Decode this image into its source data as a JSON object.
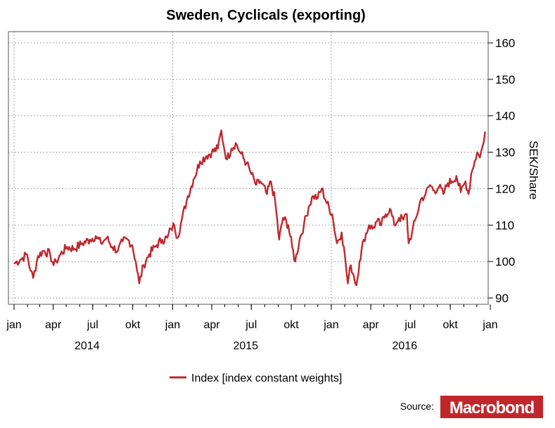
{
  "chart_data": {
    "type": "line",
    "title": "Sweden, Cyclicals (exporting)",
    "ylabel": "SEK/Share",
    "ylim": [
      88,
      163
    ],
    "y_ticks": [
      "160",
      "150",
      "140",
      "130",
      "120",
      "110",
      "100",
      "90"
    ],
    "y_tick_values": [
      160,
      150,
      140,
      130,
      120,
      110,
      100,
      90
    ],
    "x_range": [
      "2014-01-01",
      "2017-01-01"
    ],
    "x_month_ticks": [
      {
        "date": "2014-01-01",
        "label": "jan"
      },
      {
        "date": "2014-04-01",
        "label": "apr"
      },
      {
        "date": "2014-07-01",
        "label": "jul"
      },
      {
        "date": "2014-10-01",
        "label": "okt"
      },
      {
        "date": "2015-01-01",
        "label": "jan"
      },
      {
        "date": "2015-04-01",
        "label": "apr"
      },
      {
        "date": "2015-07-01",
        "label": "jul"
      },
      {
        "date": "2015-10-01",
        "label": "okt"
      },
      {
        "date": "2016-01-01",
        "label": "jan"
      },
      {
        "date": "2016-04-01",
        "label": "apr"
      },
      {
        "date": "2016-07-01",
        "label": "jul"
      },
      {
        "date": "2016-10-01",
        "label": "okt"
      },
      {
        "date": "2017-01-01",
        "label": "jan"
      }
    ],
    "x_year_labels": [
      {
        "date": "2014-07-01",
        "label": "2014"
      },
      {
        "date": "2015-07-01",
        "label": "2015"
      },
      {
        "date": "2016-07-01",
        "label": "2016"
      }
    ],
    "grid": true,
    "legend_position": "bottom",
    "series": [
      {
        "name": "Index [index constant weights]",
        "color": "#c0272d",
        "points": [
          [
            "2014-01-02",
            99.5
          ],
          [
            "2014-01-15",
            100.5
          ],
          [
            "2014-01-31",
            102
          ],
          [
            "2014-02-08",
            97.5
          ],
          [
            "2014-02-14",
            95.5
          ],
          [
            "2014-02-25",
            101.5
          ],
          [
            "2014-03-10",
            103
          ],
          [
            "2014-03-25",
            102
          ],
          [
            "2014-04-02",
            99
          ],
          [
            "2014-04-08",
            100
          ],
          [
            "2014-04-18",
            102
          ],
          [
            "2014-05-03",
            104
          ],
          [
            "2014-05-20",
            103.5
          ],
          [
            "2014-06-07",
            105
          ],
          [
            "2014-06-25",
            106
          ],
          [
            "2014-07-08",
            107
          ],
          [
            "2014-07-20",
            105
          ],
          [
            "2014-08-02",
            106.5
          ],
          [
            "2014-08-15",
            104
          ],
          [
            "2014-08-28",
            103
          ],
          [
            "2014-09-08",
            105.5
          ],
          [
            "2014-09-20",
            106
          ],
          [
            "2014-09-30",
            104.5
          ],
          [
            "2014-10-08",
            100
          ],
          [
            "2014-10-16",
            94
          ],
          [
            "2014-10-26",
            99
          ],
          [
            "2014-11-08",
            102
          ],
          [
            "2014-11-25",
            104.5
          ],
          [
            "2014-12-08",
            106
          ],
          [
            "2014-12-20",
            106.5
          ],
          [
            "2014-12-28",
            109
          ],
          [
            "2015-01-05",
            110
          ],
          [
            "2015-01-12",
            106.5
          ],
          [
            "2015-01-20",
            110.5
          ],
          [
            "2015-02-05",
            118
          ],
          [
            "2015-02-18",
            122.5
          ],
          [
            "2015-03-05",
            127.5
          ],
          [
            "2015-03-20",
            129
          ],
          [
            "2015-04-01",
            130
          ],
          [
            "2015-04-15",
            131
          ],
          [
            "2015-04-23",
            136
          ],
          [
            "2015-04-28",
            132
          ],
          [
            "2015-05-06",
            128
          ],
          [
            "2015-05-16",
            131
          ],
          [
            "2015-05-26",
            132.5
          ],
          [
            "2015-06-05",
            130
          ],
          [
            "2015-06-20",
            127
          ],
          [
            "2015-07-01",
            124
          ],
          [
            "2015-07-12",
            121
          ],
          [
            "2015-07-22",
            122
          ],
          [
            "2015-08-06",
            118.5
          ],
          [
            "2015-08-15",
            122
          ],
          [
            "2015-08-25",
            116.5
          ],
          [
            "2015-09-03",
            106
          ],
          [
            "2015-09-12",
            112
          ],
          [
            "2015-09-24",
            110
          ],
          [
            "2015-10-03",
            104
          ],
          [
            "2015-10-10",
            100
          ],
          [
            "2015-10-20",
            106
          ],
          [
            "2015-10-30",
            110
          ],
          [
            "2015-11-10",
            115
          ],
          [
            "2015-11-20",
            118
          ],
          [
            "2015-12-01",
            117.5
          ],
          [
            "2015-12-10",
            120
          ],
          [
            "2015-12-22",
            116
          ],
          [
            "2016-01-03",
            113
          ],
          [
            "2016-01-14",
            105
          ],
          [
            "2016-01-25",
            108
          ],
          [
            "2016-02-02",
            101
          ],
          [
            "2016-02-08",
            94
          ],
          [
            "2016-02-15",
            99
          ],
          [
            "2016-02-22",
            96
          ],
          [
            "2016-02-28",
            93.5
          ],
          [
            "2016-03-06",
            100
          ],
          [
            "2016-03-16",
            106
          ],
          [
            "2016-03-28",
            110
          ],
          [
            "2016-04-05",
            109
          ],
          [
            "2016-04-15",
            111
          ],
          [
            "2016-04-25",
            110
          ],
          [
            "2016-05-05",
            113
          ],
          [
            "2016-05-15",
            114.5
          ],
          [
            "2016-05-25",
            110
          ],
          [
            "2016-06-05",
            112
          ],
          [
            "2016-06-15",
            111.5
          ],
          [
            "2016-06-23",
            113
          ],
          [
            "2016-06-27",
            105
          ],
          [
            "2016-07-05",
            108
          ],
          [
            "2016-07-14",
            112
          ],
          [
            "2016-07-25",
            117
          ],
          [
            "2016-08-05",
            118.5
          ],
          [
            "2016-08-15",
            121
          ],
          [
            "2016-08-25",
            119.5
          ],
          [
            "2016-09-05",
            120.5
          ],
          [
            "2016-09-15",
            118.5
          ],
          [
            "2016-09-25",
            121.5
          ],
          [
            "2016-10-05",
            122
          ],
          [
            "2016-10-15",
            123.5
          ],
          [
            "2016-10-25",
            119
          ],
          [
            "2016-11-05",
            122
          ],
          [
            "2016-11-12",
            118.5
          ],
          [
            "2016-11-18",
            124
          ],
          [
            "2016-11-26",
            127.5
          ],
          [
            "2016-12-02",
            130
          ],
          [
            "2016-12-08",
            128.5
          ],
          [
            "2016-12-14",
            131.5
          ],
          [
            "2016-12-20",
            135.5
          ]
        ]
      }
    ]
  },
  "source": {
    "label": "Source:",
    "logo_text": "Macrobond"
  }
}
